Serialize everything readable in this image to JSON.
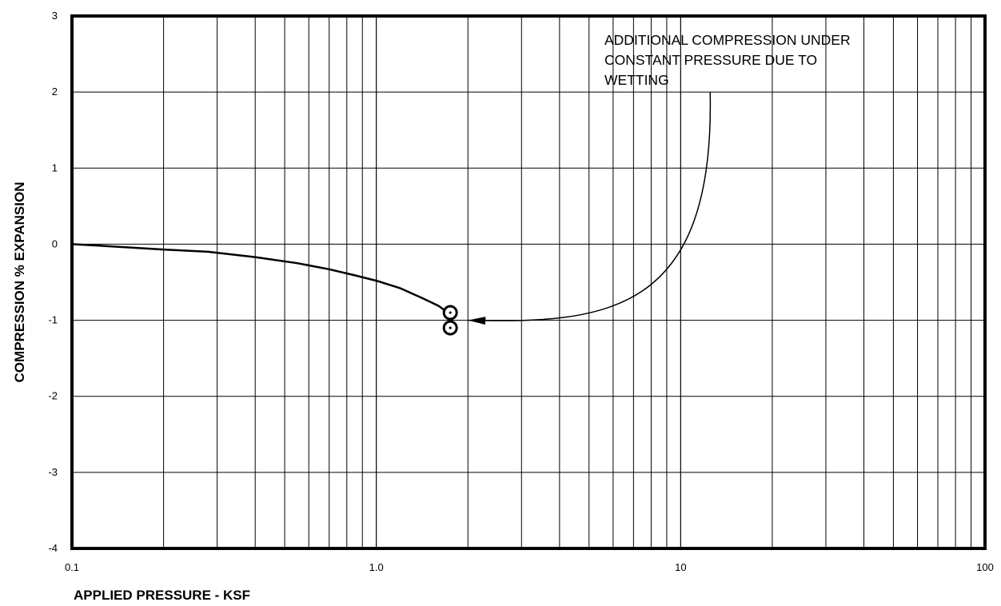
{
  "chart_data": {
    "type": "line",
    "x_scale": "log",
    "xlabel": "APPLIED PRESSURE - KSF",
    "ylabel": "COMPRESSION % EXPANSION",
    "xlim": [
      0.1,
      100
    ],
    "ylim": [
      -4,
      3
    ],
    "x_tick_labels": [
      "0.1",
      "1.0",
      "10",
      "100"
    ],
    "x_tick_values": [
      0.1,
      1,
      10,
      100
    ],
    "y_ticks": [
      3,
      2,
      1,
      0,
      -1,
      -2,
      -3,
      -4
    ],
    "grid": true,
    "series": [
      {
        "x": [
          0.1,
          0.15,
          0.2,
          0.28,
          0.4,
          0.55,
          0.7,
          0.85,
          1.0,
          1.2,
          1.4,
          1.6,
          1.72
        ],
        "y": [
          0.0,
          -0.04,
          -0.07,
          -0.1,
          -0.17,
          -0.25,
          -0.33,
          -0.41,
          -0.48,
          -0.58,
          -0.7,
          -0.81,
          -0.9
        ]
      }
    ],
    "markers": [
      {
        "x": 1.75,
        "y": -0.9
      },
      {
        "x": 1.75,
        "y": -1.1
      }
    ],
    "annotations": [
      {
        "lines": [
          "ADDITIONAL COMPRESSION UNDER",
          "CONSTANT PRESSURE DUE TO",
          "WETTING"
        ],
        "arrow": {
          "from": {
            "x": 12.5,
            "y": 2.0
          },
          "to": {
            "x": 2.0,
            "y": -1.0
          }
        }
      }
    ]
  }
}
